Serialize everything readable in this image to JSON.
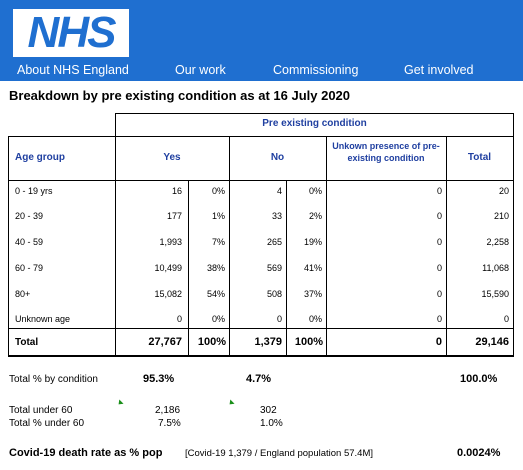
{
  "header": {
    "logo_text": "NHS",
    "nav": [
      "About NHS England",
      "Our work",
      "Commissioning",
      "Get involved"
    ]
  },
  "title": "Breakdown by pre existing condition as at 16 July 2020",
  "table": {
    "group_header": "Pre existing condition",
    "columns": {
      "age_group": "Age group",
      "yes": "Yes",
      "no": "No",
      "unknown": "Unkown presence of pre-existing condition",
      "total": "Total"
    },
    "rows": [
      {
        "age": "0 - 19 yrs",
        "yes": "16",
        "yes_pct": "0%",
        "no": "4",
        "no_pct": "0%",
        "unknown": "0",
        "total": "20"
      },
      {
        "age": "20 - 39",
        "yes": "177",
        "yes_pct": "1%",
        "no": "33",
        "no_pct": "2%",
        "unknown": "0",
        "total": "210"
      },
      {
        "age": "40 - 59",
        "yes": "1,993",
        "yes_pct": "7%",
        "no": "265",
        "no_pct": "19%",
        "unknown": "0",
        "total": "2,258"
      },
      {
        "age": "60 - 79",
        "yes": "10,499",
        "yes_pct": "38%",
        "no": "569",
        "no_pct": "41%",
        "unknown": "0",
        "total": "11,068"
      },
      {
        "age": "80+",
        "yes": "15,082",
        "yes_pct": "54%",
        "no": "508",
        "no_pct": "37%",
        "unknown": "0",
        "total": "15,590"
      },
      {
        "age": "Unknown age",
        "yes": "0",
        "yes_pct": "0%",
        "no": "0",
        "no_pct": "0%",
        "unknown": "0",
        "total": "0"
      }
    ],
    "total_row": {
      "age": "Total",
      "yes": "27,767",
      "yes_pct": "100%",
      "no": "1,379",
      "no_pct": "100%",
      "unknown": "0",
      "total": "29,146"
    }
  },
  "summary": {
    "by_condition_label": "Total % by condition",
    "by_condition_yes": "95.3%",
    "by_condition_no": "4.7%",
    "by_condition_total": "100.0%",
    "under60_label": "Total under 60",
    "under60_yes": "2,186",
    "under60_no": "302",
    "pct_under60_label": "Total % under 60",
    "pct_under60_yes": "7.5%",
    "pct_under60_no": "1.0%",
    "death_rate_label": "Covid-19 death rate as % pop",
    "death_rate_note": "[Covid-19 1,379 / England population 57.4M]",
    "death_rate_value": "0.0024%"
  }
}
